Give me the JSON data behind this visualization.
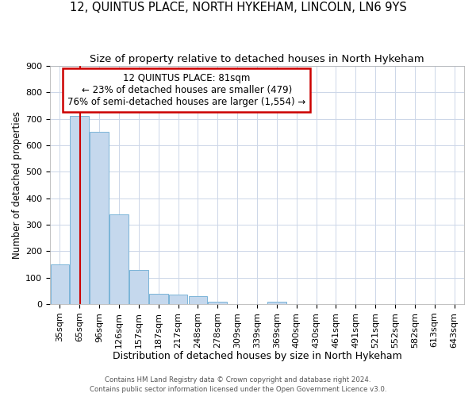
{
  "title": "12, QUINTUS PLACE, NORTH HYKEHAM, LINCOLN, LN6 9YS",
  "subtitle": "Size of property relative to detached houses in North Hykeham",
  "xlabel": "Distribution of detached houses by size in North Hykeham",
  "ylabel": "Number of detached properties",
  "categories": [
    "35sqm",
    "65sqm",
    "96sqm",
    "126sqm",
    "157sqm",
    "187sqm",
    "217sqm",
    "248sqm",
    "278sqm",
    "309sqm",
    "339sqm",
    "369sqm",
    "400sqm",
    "430sqm",
    "461sqm",
    "491sqm",
    "521sqm",
    "552sqm",
    "582sqm",
    "613sqm",
    "643sqm"
  ],
  "values": [
    150,
    710,
    650,
    340,
    130,
    40,
    35,
    30,
    10,
    0,
    0,
    10,
    0,
    0,
    0,
    0,
    0,
    0,
    0,
    0,
    0
  ],
  "bar_color": "#c5d8ed",
  "bar_edge_color": "#7ab4d8",
  "annotation_line1": "12 QUINTUS PLACE: 81sqm",
  "annotation_line2": "← 23% of detached houses are smaller (479)",
  "annotation_line3": "76% of semi-detached houses are larger (1,554) →",
  "annotation_box_color": "#ffffff",
  "annotation_box_edge_color": "#cc0000",
  "vline_color": "#cc0000",
  "ylim": [
    0,
    900
  ],
  "yticks": [
    0,
    100,
    200,
    300,
    400,
    500,
    600,
    700,
    800,
    900
  ],
  "title_fontsize": 10.5,
  "subtitle_fontsize": 9.5,
  "xlabel_fontsize": 9,
  "ylabel_fontsize": 8.5,
  "tick_fontsize": 8,
  "footer_line1": "Contains HM Land Registry data © Crown copyright and database right 2024.",
  "footer_line2": "Contains public sector information licensed under the Open Government Licence v3.0.",
  "background_color": "#ffffff",
  "grid_color": "#ccd6e8",
  "ann_fontsize": 8.5
}
